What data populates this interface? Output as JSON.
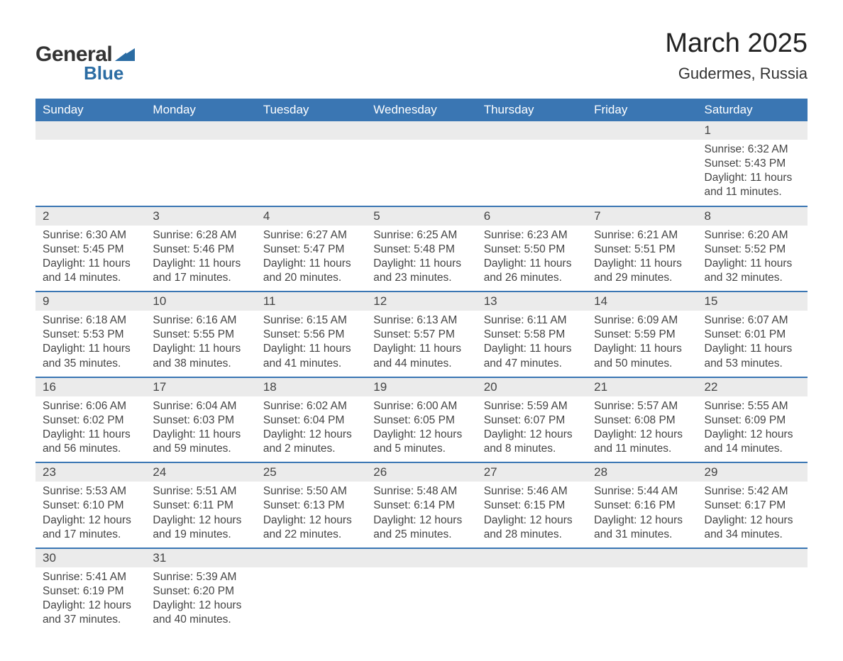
{
  "logo": {
    "word1": "General",
    "word2": "Blue",
    "text_color": "#333333",
    "accent_color": "#2b6ca3"
  },
  "title": "March 2025",
  "location": "Gudermes, Russia",
  "colors": {
    "header_bg": "#3a76b3",
    "header_text": "#ffffff",
    "daynum_bg": "#ebebeb",
    "row_border": "#3a76b3",
    "body_text": "#444444",
    "background": "#ffffff"
  },
  "fonts": {
    "title_pt": 38,
    "location_pt": 22,
    "header_pt": 17,
    "daynum_pt": 17,
    "body_pt": 15.5
  },
  "weekdays": [
    "Sunday",
    "Monday",
    "Tuesday",
    "Wednesday",
    "Thursday",
    "Friday",
    "Saturday"
  ],
  "weeks": [
    [
      null,
      null,
      null,
      null,
      null,
      null,
      {
        "n": "1",
        "sr": "Sunrise: 6:32 AM",
        "ss": "Sunset: 5:43 PM",
        "d1": "Daylight: 11 hours",
        "d2": "and 11 minutes."
      }
    ],
    [
      {
        "n": "2",
        "sr": "Sunrise: 6:30 AM",
        "ss": "Sunset: 5:45 PM",
        "d1": "Daylight: 11 hours",
        "d2": "and 14 minutes."
      },
      {
        "n": "3",
        "sr": "Sunrise: 6:28 AM",
        "ss": "Sunset: 5:46 PM",
        "d1": "Daylight: 11 hours",
        "d2": "and 17 minutes."
      },
      {
        "n": "4",
        "sr": "Sunrise: 6:27 AM",
        "ss": "Sunset: 5:47 PM",
        "d1": "Daylight: 11 hours",
        "d2": "and 20 minutes."
      },
      {
        "n": "5",
        "sr": "Sunrise: 6:25 AM",
        "ss": "Sunset: 5:48 PM",
        "d1": "Daylight: 11 hours",
        "d2": "and 23 minutes."
      },
      {
        "n": "6",
        "sr": "Sunrise: 6:23 AM",
        "ss": "Sunset: 5:50 PM",
        "d1": "Daylight: 11 hours",
        "d2": "and 26 minutes."
      },
      {
        "n": "7",
        "sr": "Sunrise: 6:21 AM",
        "ss": "Sunset: 5:51 PM",
        "d1": "Daylight: 11 hours",
        "d2": "and 29 minutes."
      },
      {
        "n": "8",
        "sr": "Sunrise: 6:20 AM",
        "ss": "Sunset: 5:52 PM",
        "d1": "Daylight: 11 hours",
        "d2": "and 32 minutes."
      }
    ],
    [
      {
        "n": "9",
        "sr": "Sunrise: 6:18 AM",
        "ss": "Sunset: 5:53 PM",
        "d1": "Daylight: 11 hours",
        "d2": "and 35 minutes."
      },
      {
        "n": "10",
        "sr": "Sunrise: 6:16 AM",
        "ss": "Sunset: 5:55 PM",
        "d1": "Daylight: 11 hours",
        "d2": "and 38 minutes."
      },
      {
        "n": "11",
        "sr": "Sunrise: 6:15 AM",
        "ss": "Sunset: 5:56 PM",
        "d1": "Daylight: 11 hours",
        "d2": "and 41 minutes."
      },
      {
        "n": "12",
        "sr": "Sunrise: 6:13 AM",
        "ss": "Sunset: 5:57 PM",
        "d1": "Daylight: 11 hours",
        "d2": "and 44 minutes."
      },
      {
        "n": "13",
        "sr": "Sunrise: 6:11 AM",
        "ss": "Sunset: 5:58 PM",
        "d1": "Daylight: 11 hours",
        "d2": "and 47 minutes."
      },
      {
        "n": "14",
        "sr": "Sunrise: 6:09 AM",
        "ss": "Sunset: 5:59 PM",
        "d1": "Daylight: 11 hours",
        "d2": "and 50 minutes."
      },
      {
        "n": "15",
        "sr": "Sunrise: 6:07 AM",
        "ss": "Sunset: 6:01 PM",
        "d1": "Daylight: 11 hours",
        "d2": "and 53 minutes."
      }
    ],
    [
      {
        "n": "16",
        "sr": "Sunrise: 6:06 AM",
        "ss": "Sunset: 6:02 PM",
        "d1": "Daylight: 11 hours",
        "d2": "and 56 minutes."
      },
      {
        "n": "17",
        "sr": "Sunrise: 6:04 AM",
        "ss": "Sunset: 6:03 PM",
        "d1": "Daylight: 11 hours",
        "d2": "and 59 minutes."
      },
      {
        "n": "18",
        "sr": "Sunrise: 6:02 AM",
        "ss": "Sunset: 6:04 PM",
        "d1": "Daylight: 12 hours",
        "d2": "and 2 minutes."
      },
      {
        "n": "19",
        "sr": "Sunrise: 6:00 AM",
        "ss": "Sunset: 6:05 PM",
        "d1": "Daylight: 12 hours",
        "d2": "and 5 minutes."
      },
      {
        "n": "20",
        "sr": "Sunrise: 5:59 AM",
        "ss": "Sunset: 6:07 PM",
        "d1": "Daylight: 12 hours",
        "d2": "and 8 minutes."
      },
      {
        "n": "21",
        "sr": "Sunrise: 5:57 AM",
        "ss": "Sunset: 6:08 PM",
        "d1": "Daylight: 12 hours",
        "d2": "and 11 minutes."
      },
      {
        "n": "22",
        "sr": "Sunrise: 5:55 AM",
        "ss": "Sunset: 6:09 PM",
        "d1": "Daylight: 12 hours",
        "d2": "and 14 minutes."
      }
    ],
    [
      {
        "n": "23",
        "sr": "Sunrise: 5:53 AM",
        "ss": "Sunset: 6:10 PM",
        "d1": "Daylight: 12 hours",
        "d2": "and 17 minutes."
      },
      {
        "n": "24",
        "sr": "Sunrise: 5:51 AM",
        "ss": "Sunset: 6:11 PM",
        "d1": "Daylight: 12 hours",
        "d2": "and 19 minutes."
      },
      {
        "n": "25",
        "sr": "Sunrise: 5:50 AM",
        "ss": "Sunset: 6:13 PM",
        "d1": "Daylight: 12 hours",
        "d2": "and 22 minutes."
      },
      {
        "n": "26",
        "sr": "Sunrise: 5:48 AM",
        "ss": "Sunset: 6:14 PM",
        "d1": "Daylight: 12 hours",
        "d2": "and 25 minutes."
      },
      {
        "n": "27",
        "sr": "Sunrise: 5:46 AM",
        "ss": "Sunset: 6:15 PM",
        "d1": "Daylight: 12 hours",
        "d2": "and 28 minutes."
      },
      {
        "n": "28",
        "sr": "Sunrise: 5:44 AM",
        "ss": "Sunset: 6:16 PM",
        "d1": "Daylight: 12 hours",
        "d2": "and 31 minutes."
      },
      {
        "n": "29",
        "sr": "Sunrise: 5:42 AM",
        "ss": "Sunset: 6:17 PM",
        "d1": "Daylight: 12 hours",
        "d2": "and 34 minutes."
      }
    ],
    [
      {
        "n": "30",
        "sr": "Sunrise: 5:41 AM",
        "ss": "Sunset: 6:19 PM",
        "d1": "Daylight: 12 hours",
        "d2": "and 37 minutes."
      },
      {
        "n": "31",
        "sr": "Sunrise: 5:39 AM",
        "ss": "Sunset: 6:20 PM",
        "d1": "Daylight: 12 hours",
        "d2": "and 40 minutes."
      },
      null,
      null,
      null,
      null,
      null
    ]
  ]
}
